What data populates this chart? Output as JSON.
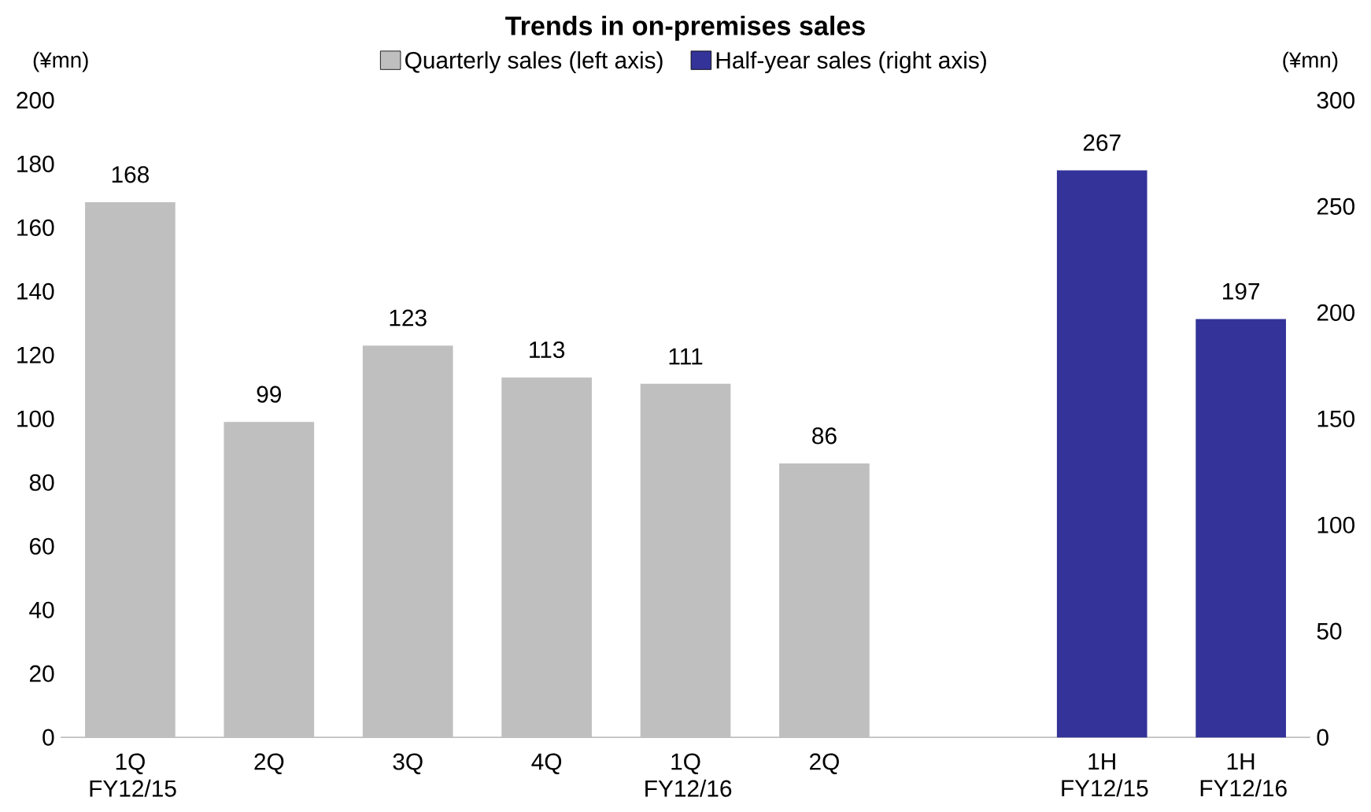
{
  "chart_data": {
    "type": "bar",
    "title": "Trends in on-premises sales",
    "categories": [
      "1Q FY12/15",
      "2Q",
      "3Q",
      "4Q",
      "1Q FY12/16",
      "2Q",
      null,
      "1H FY12/15",
      "1H FY12/16"
    ],
    "series": [
      {
        "name": "Quarterly sales (left axis)",
        "color": "#bfbfbf",
        "values": [
          168,
          99,
          123,
          113,
          111,
          86,
          null,
          null,
          null
        ]
      },
      {
        "name": "Half-year sales (right axis)",
        "color": "#333399",
        "axis": "y2",
        "values": [
          null,
          null,
          null,
          null,
          null,
          null,
          null,
          267,
          197
        ]
      }
    ],
    "ylabel": "(¥mn)",
    "y2label": "(¥mn)",
    "ylim": [
      0,
      200
    ],
    "yticks": [
      0,
      20,
      40,
      60,
      80,
      100,
      120,
      140,
      160,
      180,
      200
    ],
    "y2lim": [
      0,
      300
    ],
    "y2ticks": [
      0,
      50,
      100,
      150,
      200,
      250,
      300
    ],
    "data_labels": true,
    "legend": "top",
    "grid": false
  }
}
